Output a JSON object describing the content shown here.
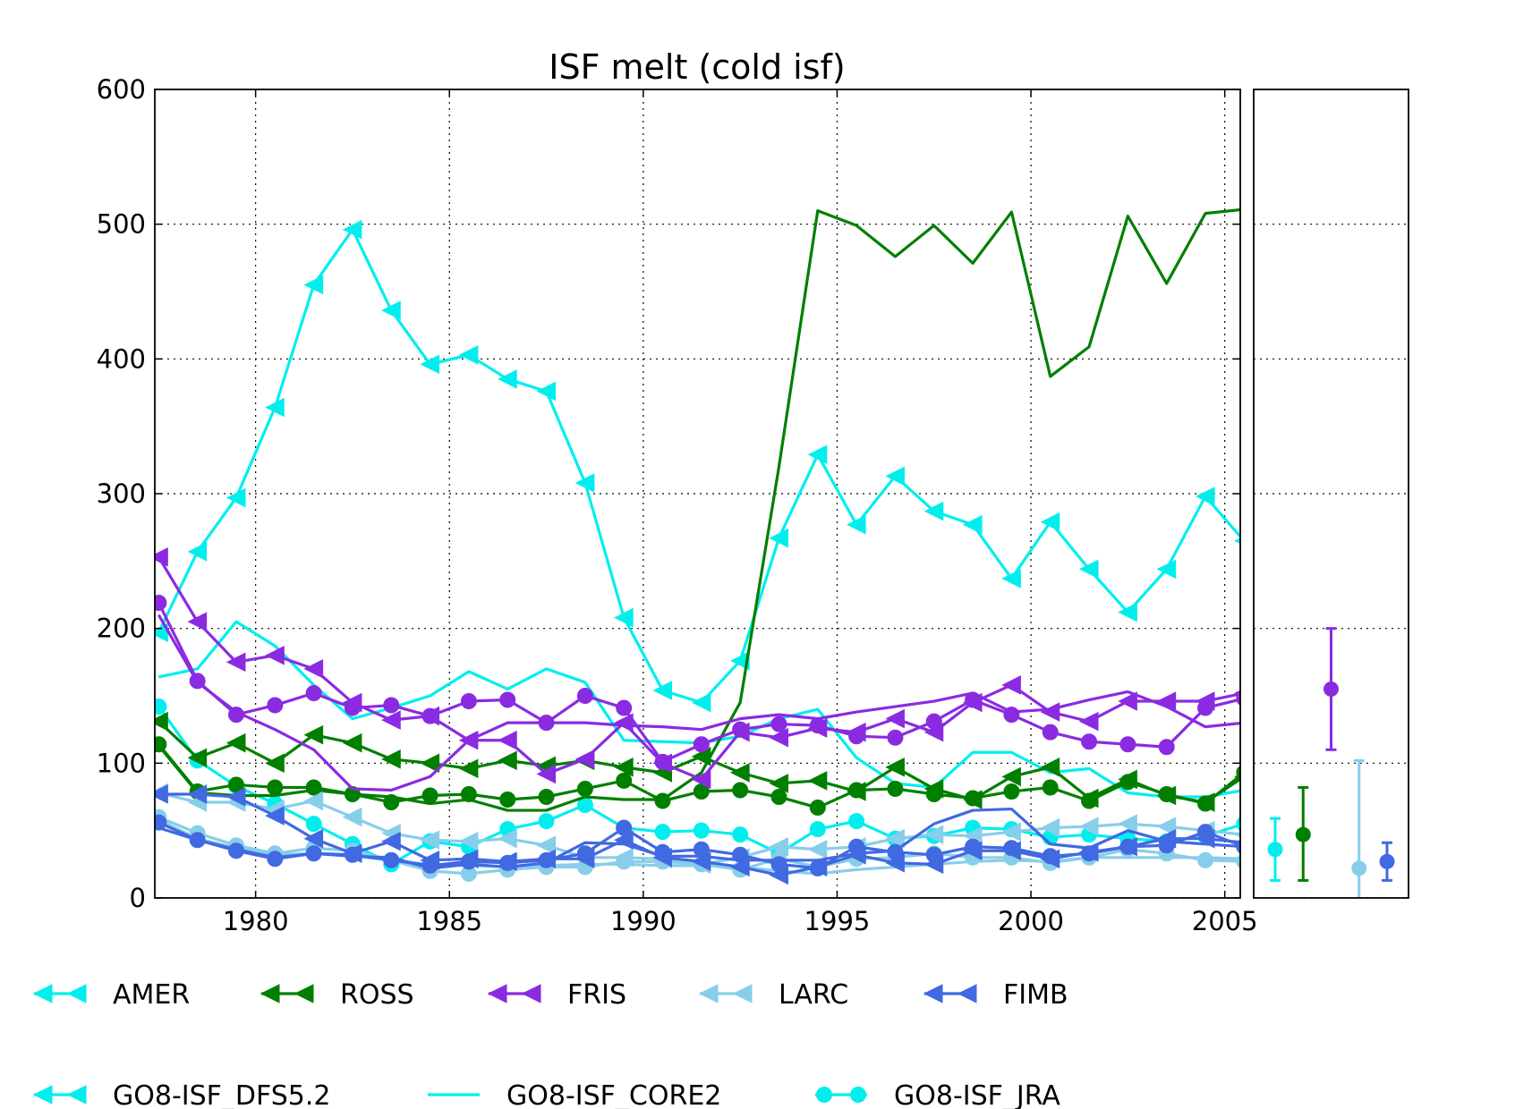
{
  "chart_data": {
    "type": "line",
    "title": "ISF melt (cold isf)",
    "xlabel": "",
    "ylabel": "",
    "xlim": [
      1977.4,
      2005.4
    ],
    "ylim": [
      0,
      600
    ],
    "xticks": [
      1980,
      1985,
      1990,
      1995,
      2000,
      2005
    ],
    "yticks": [
      0,
      100,
      200,
      300,
      400,
      500,
      600
    ],
    "grid": true,
    "x": [
      1977.5,
      1978.5,
      1979.5,
      1980.5,
      1981.5,
      1982.5,
      1983.5,
      1984.5,
      1985.5,
      1986.5,
      1987.5,
      1988.5,
      1989.5,
      1990.5,
      1991.5,
      1992.5,
      1993.5,
      1994.5,
      1995.5,
      1996.5,
      1997.5,
      1998.5,
      1999.5,
      2000.5,
      2001.5,
      2002.5,
      2003.5,
      2004.5,
      2005.5
    ],
    "regions": [
      {
        "name": "AMER",
        "color": "#00EEEE"
      },
      {
        "name": "ROSS",
        "color": "#007F00"
      },
      {
        "name": "FRIS",
        "color": "#8A2BE2"
      },
      {
        "name": "LARC",
        "color": "#87CEEB"
      },
      {
        "name": "FIMB",
        "color": "#4169E1"
      }
    ],
    "runs": [
      {
        "name": "GO8-ISF_DFS5.2",
        "marker": "triangle-left"
      },
      {
        "name": "GO8-ISF_CORE2",
        "marker": "none"
      },
      {
        "name": "GO8-ISF_JRA",
        "marker": "circle"
      }
    ],
    "series": [
      {
        "region": "AMER",
        "run": "GO8-ISF_DFS5.2",
        "values": [
          197,
          257,
          297,
          364,
          455,
          496,
          436,
          396,
          403,
          385,
          376,
          308,
          208,
          154,
          145,
          176,
          267,
          329,
          277,
          313,
          287,
          277,
          237,
          279,
          244,
          212,
          244,
          298,
          265
        ]
      },
      {
        "region": "AMER",
        "run": "GO8-ISF_CORE2",
        "values": [
          164,
          170,
          205,
          187,
          158,
          133,
          141,
          150,
          168,
          155,
          170,
          160,
          117,
          116,
          115,
          120,
          133,
          140,
          104,
          85,
          82,
          108,
          108,
          93,
          96,
          78,
          75,
          75,
          80
        ]
      },
      {
        "region": "AMER",
        "run": "GO8-ISF_JRA",
        "values": [
          142,
          102,
          83,
          70,
          55,
          40,
          25,
          42,
          38,
          51,
          57,
          69,
          52,
          49,
          50,
          47,
          33,
          51,
          57,
          44,
          46,
          52,
          51,
          45,
          47,
          44,
          42,
          46,
          55
        ]
      },
      {
        "region": "ROSS",
        "run": "GO8-ISF_DFS5.2",
        "values": [
          131,
          104,
          115,
          100,
          121,
          115,
          103,
          100,
          96,
          102,
          98,
          102,
          97,
          93,
          105,
          93,
          85,
          87,
          79,
          97,
          81,
          73,
          90,
          97,
          74,
          88,
          76,
          71,
          90
        ]
      },
      {
        "region": "ROSS",
        "run": "GO8-ISF_CORE2",
        "values": [
          113,
          78,
          76,
          76,
          80,
          77,
          75,
          70,
          73,
          65,
          65,
          75,
          73,
          73,
          93,
          145,
          320,
          510,
          499,
          476,
          499,
          471,
          509,
          387,
          409,
          506,
          456,
          508,
          511
        ]
      },
      {
        "region": "ROSS",
        "run": "GO8-ISF_JRA",
        "values": [
          114,
          79,
          84,
          82,
          82,
          77,
          71,
          76,
          77,
          73,
          75,
          81,
          87,
          72,
          79,
          80,
          75,
          67,
          80,
          81,
          77,
          74,
          79,
          82,
          72,
          86,
          77,
          70,
          93
        ]
      },
      {
        "region": "FRIS",
        "run": "GO8-ISF_DFS5.2",
        "values": [
          253,
          205,
          175,
          180,
          170,
          145,
          132,
          135,
          117,
          117,
          92,
          103,
          130,
          100,
          88,
          123,
          119,
          126,
          123,
          133,
          123,
          145,
          158,
          138,
          131,
          146,
          146,
          146,
          152
        ]
      },
      {
        "region": "FRIS",
        "run": "GO8-ISF_CORE2",
        "values": [
          210,
          160,
          138,
          125,
          110,
          81,
          80,
          90,
          117,
          130,
          130,
          130,
          128,
          127,
          125,
          133,
          136,
          133,
          138,
          142,
          146,
          152,
          138,
          140,
          147,
          153,
          142,
          127,
          130
        ]
      },
      {
        "region": "FRIS",
        "run": "GO8-ISF_JRA",
        "values": [
          219,
          161,
          136,
          143,
          152,
          141,
          143,
          135,
          146,
          147,
          130,
          150,
          141,
          101,
          114,
          125,
          129,
          128,
          120,
          119,
          131,
          147,
          136,
          123,
          116,
          114,
          112,
          141,
          148
        ]
      },
      {
        "region": "LARC",
        "run": "GO8-ISF_DFS5.2",
        "values": [
          78,
          71,
          71,
          66,
          72,
          60,
          48,
          43,
          42,
          44,
          39,
          30,
          30,
          29,
          25,
          30,
          38,
          36,
          38,
          44,
          47,
          46,
          49,
          52,
          53,
          55,
          53,
          50,
          47
        ]
      },
      {
        "region": "LARC",
        "run": "GO8-ISF_CORE2",
        "values": [
          58,
          44,
          37,
          32,
          33,
          31,
          28,
          25,
          24,
          23,
          24,
          25,
          25,
          24,
          24,
          23,
          20,
          18,
          21,
          23,
          25,
          27,
          28,
          27,
          30,
          30,
          30,
          30,
          29
        ]
      },
      {
        "region": "LARC",
        "run": "GO8-ISF_JRA",
        "values": [
          60,
          48,
          39,
          33,
          37,
          35,
          28,
          20,
          18,
          21,
          23,
          23,
          27,
          27,
          25,
          21,
          29,
          23,
          29,
          30,
          33,
          30,
          30,
          26,
          30,
          36,
          33,
          28,
          27
        ]
      },
      {
        "region": "FIMB",
        "run": "GO8-ISF_DFS5.2",
        "values": [
          77,
          77,
          75,
          61,
          44,
          33,
          42,
          28,
          29,
          27,
          29,
          29,
          43,
          30,
          27,
          23,
          17,
          23,
          32,
          26,
          25,
          35,
          35,
          29,
          34,
          38,
          44,
          44,
          41
        ]
      },
      {
        "region": "FIMB",
        "run": "GO8-ISF_CORE2",
        "values": [
          52,
          43,
          36,
          30,
          33,
          31,
          30,
          22,
          25,
          23,
          26,
          41,
          40,
          31,
          31,
          28,
          28,
          28,
          33,
          35,
          55,
          65,
          66,
          40,
          37,
          50,
          42,
          40,
          38
        ]
      },
      {
        "region": "FIMB",
        "run": "GO8-ISF_JRA",
        "values": [
          56,
          43,
          35,
          29,
          33,
          32,
          28,
          24,
          27,
          26,
          28,
          33,
          52,
          34,
          36,
          32,
          25,
          22,
          38,
          34,
          32,
          38,
          37,
          31,
          33,
          38,
          39,
          49,
          38
        ]
      }
    ],
    "side_panel": {
      "ylim": [
        0,
        600
      ],
      "points": [
        {
          "region": "AMER",
          "value": 36,
          "low": 13,
          "high": 59
        },
        {
          "region": "ROSS",
          "value": 47,
          "low": 13,
          "high": 82
        },
        {
          "region": "FRIS",
          "value": 155,
          "low": 110,
          "high": 200
        },
        {
          "region": "LARC",
          "value": 22,
          "low": -5,
          "high": 102
        },
        {
          "region": "FIMB",
          "value": 27,
          "low": 13,
          "high": 41
        }
      ]
    },
    "legend": {
      "regions": [
        "AMER",
        "ROSS",
        "FRIS",
        "LARC",
        "FIMB"
      ],
      "runs": [
        "GO8-ISF_DFS5.2",
        "GO8-ISF_CORE2",
        "GO8-ISF_JRA"
      ],
      "placement": "bottom",
      "run_legend_color": "#00EEEE"
    }
  }
}
